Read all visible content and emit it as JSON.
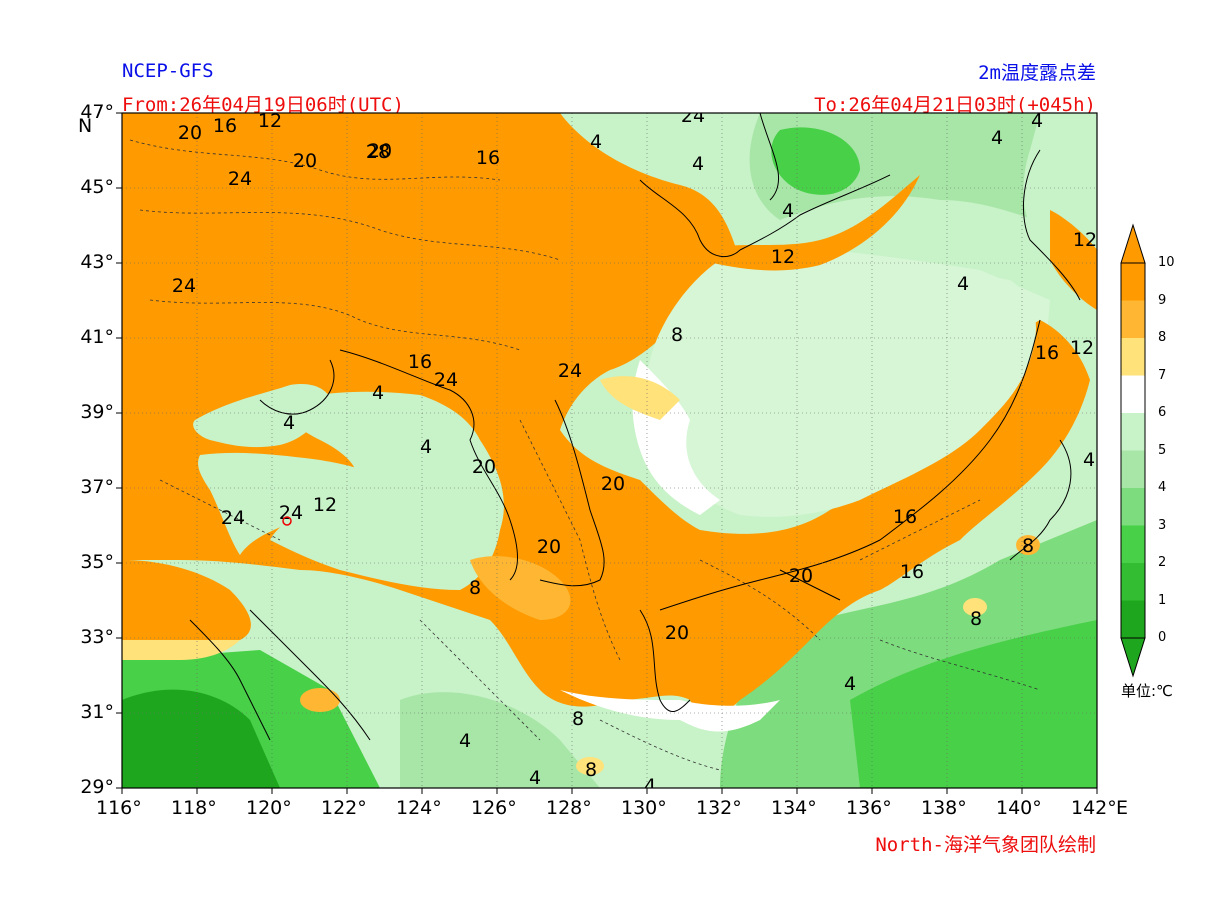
{
  "header": {
    "model": "NCEP-GFS",
    "variable": "2m温度露点差",
    "from": "From:26年04月19日06时(UTC)",
    "to": "To:26年04月21日03时(+045h)",
    "credit": "North-海洋气象团队绘制"
  },
  "axes": {
    "lat_labels": [
      "47°",
      "45°",
      "43°",
      "41°",
      "39°",
      "37°",
      "35°",
      "33°",
      "31°",
      "29°"
    ],
    "lat_unit": "N",
    "lon_labels": [
      "116°",
      "118°",
      "120°",
      "122°",
      "124°",
      "126°",
      "128°",
      "130°",
      "132°",
      "134°",
      "136°",
      "138°",
      "140°",
      "142°"
    ],
    "lon_unit": "E"
  },
  "colorbar": {
    "ticks": [
      "0",
      "1",
      "2",
      "3",
      "4",
      "5",
      "6",
      "7",
      "8",
      "9",
      "10"
    ],
    "unit_label": "单位:℃",
    "colors": [
      "#1ea61e",
      "#32bd32",
      "#48d048",
      "#7ddc7d",
      "#a8e6a8",
      "#c8f2c8",
      "#ffffff",
      "#ffe27a",
      "#ffb733",
      "#ff9a00"
    ]
  },
  "map": {
    "contour_labels": [
      "20",
      "16",
      "12",
      "20",
      "24",
      "20",
      "16",
      "24",
      "24",
      "28",
      "24",
      "16",
      "4",
      "4",
      "4",
      "20",
      "24",
      "12",
      "24",
      "20",
      "4",
      "4",
      "8",
      "20",
      "8",
      "24",
      "12",
      "4",
      "4",
      "12",
      "16",
      "4",
      "4",
      "16",
      "12",
      "8",
      "4",
      "20",
      "20",
      "16",
      "8",
      "4",
      "8",
      "4",
      "4",
      "8",
      "4"
    ]
  }
}
